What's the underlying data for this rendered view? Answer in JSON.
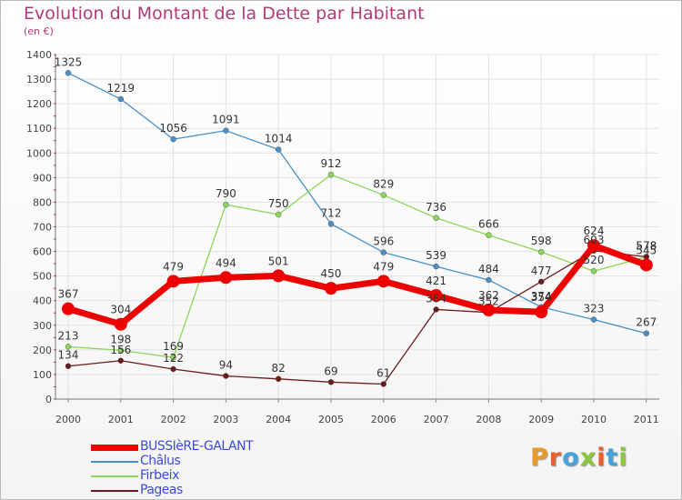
{
  "title": "Evolution du Montant de la Dette par Habitant",
  "unit": "(en €)",
  "logo": {
    "text": "Proxiti",
    "letter_colors": [
      "#e89a2a",
      "#e8612a",
      "#4aa3d8",
      "#8cc63f",
      "#e8612a",
      "#4aa3d8",
      "#8cc63f"
    ]
  },
  "chart_data": {
    "type": "line",
    "x": [
      "2000",
      "2001",
      "2002",
      "2003",
      "2004",
      "2005",
      "2006",
      "2007",
      "2008",
      "2009",
      "2010",
      "2011"
    ],
    "ylim": [
      0,
      1400
    ],
    "yticks": [
      0,
      100,
      200,
      300,
      400,
      500,
      600,
      700,
      800,
      900,
      1000,
      1100,
      1200,
      1300,
      1400
    ],
    "grid": true,
    "legend_position": "bottom-left",
    "series": [
      {
        "name": "BUSSIèRE-GALANT",
        "color": "#ee0000",
        "values": [
          367,
          304,
          479,
          494,
          501,
          450,
          479,
          421,
          362,
          354,
          624,
          545
        ]
      },
      {
        "name": "Châlus",
        "color": "#4a90c8",
        "values": [
          1325,
          1219,
          1056,
          1091,
          1014,
          712,
          596,
          539,
          484,
          374,
          323,
          267
        ]
      },
      {
        "name": "Firbeix",
        "color": "#8cd65a",
        "values": [
          213,
          198,
          169,
          790,
          750,
          912,
          829,
          736,
          666,
          598,
          520,
          578
        ]
      },
      {
        "name": "Pageas",
        "color": "#6e1a1a",
        "values": [
          134,
          156,
          122,
          94,
          82,
          69,
          61,
          364,
          352,
          477,
          603,
          578
        ]
      }
    ]
  }
}
